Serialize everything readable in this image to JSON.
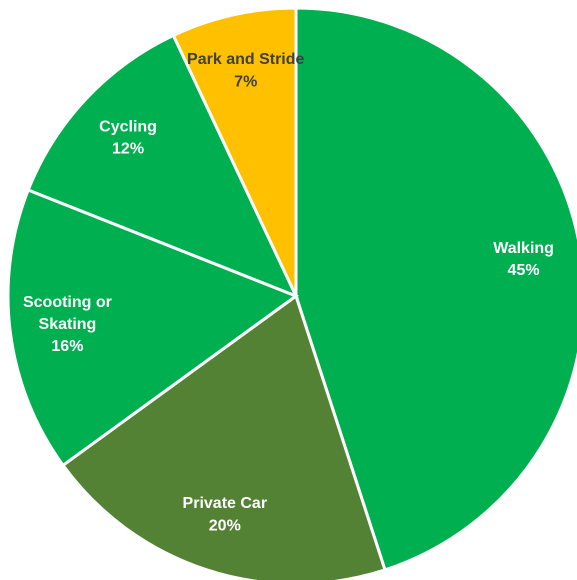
{
  "chart_data": {
    "type": "pie",
    "categories": [
      "Walking",
      "Private Car",
      "Scooting or Skating",
      "Cycling",
      "Park and Stride"
    ],
    "values": [
      45,
      20,
      16,
      12,
      7
    ],
    "value_labels": [
      "45%",
      "20%",
      "16%",
      "12%",
      "7%"
    ],
    "colors": [
      "#00b050",
      "#548235",
      "#00b050",
      "#00b050",
      "#ffc000"
    ]
  }
}
